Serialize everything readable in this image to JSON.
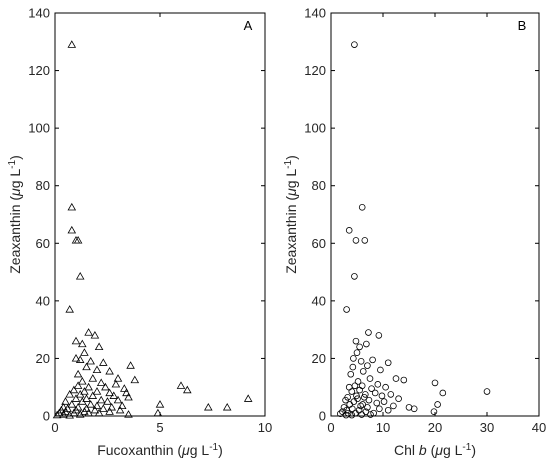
{
  "chart_data": [
    {
      "type": "scatter",
      "panel_label": "A",
      "xlabel": "Fucoxanthin (μg L⁻¹)",
      "ylabel": "Zeaxanthin (μg L⁻¹)",
      "xlim": [
        0,
        10
      ],
      "ylim": [
        0,
        140
      ],
      "xticks": [
        "0",
        "5",
        "10"
      ],
      "yticks": [
        "0",
        "20",
        "40",
        "60",
        "80",
        "100",
        "120",
        "140"
      ],
      "marker": "triangle",
      "grid": false,
      "points": [
        [
          0.8,
          129
        ],
        [
          0.8,
          72.5
        ],
        [
          0.8,
          64.5
        ],
        [
          1.0,
          61
        ],
        [
          1.1,
          61
        ],
        [
          1.2,
          48.5
        ],
        [
          0.7,
          37
        ],
        [
          1.6,
          29
        ],
        [
          1.9,
          28
        ],
        [
          1.0,
          26
        ],
        [
          1.3,
          25
        ],
        [
          2.1,
          24
        ],
        [
          1.4,
          22
        ],
        [
          1.0,
          20
        ],
        [
          1.2,
          19.5
        ],
        [
          1.7,
          19
        ],
        [
          2.3,
          18.5
        ],
        [
          3.6,
          17.5
        ],
        [
          1.5,
          17
        ],
        [
          2.0,
          16
        ],
        [
          2.6,
          15.5
        ],
        [
          1.1,
          14.5
        ],
        [
          3.0,
          13
        ],
        [
          1.8,
          13
        ],
        [
          3.8,
          12.5
        ],
        [
          1.3,
          12
        ],
        [
          2.2,
          11.5
        ],
        [
          2.9,
          11
        ],
        [
          6.0,
          10.5
        ],
        [
          1.1,
          10.5
        ],
        [
          1.6,
          10
        ],
        [
          2.4,
          10
        ],
        [
          3.3,
          9.5
        ],
        [
          6.3,
          9
        ],
        [
          0.9,
          9
        ],
        [
          1.4,
          8.5
        ],
        [
          2.0,
          8.5
        ],
        [
          2.6,
          8
        ],
        [
          3.4,
          8
        ],
        [
          0.7,
          7.5
        ],
        [
          1.2,
          7.5
        ],
        [
          1.8,
          7
        ],
        [
          2.8,
          7
        ],
        [
          3.5,
          6.5
        ],
        [
          9.2,
          6
        ],
        [
          1.0,
          6
        ],
        [
          1.5,
          6
        ],
        [
          2.2,
          5.5
        ],
        [
          3.0,
          5.5
        ],
        [
          0.5,
          5
        ],
        [
          1.3,
          5
        ],
        [
          2.5,
          5
        ],
        [
          5.0,
          4
        ],
        [
          0.8,
          4
        ],
        [
          1.7,
          4
        ],
        [
          2.0,
          3.5
        ],
        [
          3.2,
          3.5
        ],
        [
          7.3,
          3
        ],
        [
          8.2,
          3
        ],
        [
          0.4,
          3
        ],
        [
          1.1,
          3
        ],
        [
          2.7,
          3
        ],
        [
          0.6,
          2.5
        ],
        [
          1.5,
          2.5
        ],
        [
          2.3,
          2.5
        ],
        [
          0.3,
          2
        ],
        [
          1.0,
          2
        ],
        [
          1.9,
          2
        ],
        [
          3.1,
          2
        ],
        [
          0.5,
          1.5
        ],
        [
          1.4,
          1.5
        ],
        [
          2.6,
          1.5
        ],
        [
          4.9,
          1
        ],
        [
          0.2,
          1
        ],
        [
          0.9,
          1
        ],
        [
          1.6,
          1
        ],
        [
          2.1,
          1
        ],
        [
          0.4,
          0.5
        ],
        [
          1.2,
          0.5
        ],
        [
          3.5,
          0.5
        ],
        [
          0.1,
          0.3
        ],
        [
          0.7,
          0.2
        ]
      ]
    },
    {
      "type": "scatter",
      "panel_label": "B",
      "xlabel": "Chl b (μg L⁻¹)",
      "ylabel": "Zeaxanthin (μg L⁻¹)",
      "xlim": [
        0,
        40
      ],
      "ylim": [
        0,
        140
      ],
      "xticks": [
        "0",
        "10",
        "20",
        "30",
        "40"
      ],
      "yticks": [
        "0",
        "20",
        "40",
        "60",
        "80",
        "100",
        "120",
        "140"
      ],
      "marker": "circle",
      "grid": false,
      "points": [
        [
          4.5,
          129
        ],
        [
          6.0,
          72.5
        ],
        [
          3.5,
          64.5
        ],
        [
          4.8,
          61
        ],
        [
          6.5,
          61
        ],
        [
          4.5,
          48.5
        ],
        [
          3.0,
          37
        ],
        [
          7.2,
          29
        ],
        [
          9.2,
          28
        ],
        [
          4.8,
          26
        ],
        [
          6.8,
          25
        ],
        [
          5.5,
          24
        ],
        [
          5.0,
          22
        ],
        [
          4.3,
          20
        ],
        [
          8.0,
          19.5
        ],
        [
          5.8,
          19
        ],
        [
          11.0,
          18.5
        ],
        [
          7.0,
          17.5
        ],
        [
          4.2,
          17
        ],
        [
          9.5,
          16
        ],
        [
          6.2,
          15.5
        ],
        [
          3.8,
          14.5
        ],
        [
          12.5,
          13
        ],
        [
          7.5,
          13
        ],
        [
          14.0,
          12.5
        ],
        [
          5.2,
          12
        ],
        [
          20.0,
          11.5
        ],
        [
          9.0,
          11
        ],
        [
          4.6,
          10.5
        ],
        [
          6.0,
          10.5
        ],
        [
          10.5,
          10
        ],
        [
          3.5,
          10
        ],
        [
          7.8,
          9.5
        ],
        [
          5.5,
          9
        ],
        [
          30.0,
          8.5
        ],
        [
          21.5,
          8
        ],
        [
          4.0,
          8.5
        ],
        [
          8.5,
          8
        ],
        [
          6.6,
          7.5
        ],
        [
          11.5,
          7.5
        ],
        [
          4.9,
          7
        ],
        [
          9.8,
          7
        ],
        [
          3.2,
          6.5
        ],
        [
          6.4,
          6.5
        ],
        [
          13.0,
          6
        ],
        [
          5.1,
          6
        ],
        [
          7.3,
          5.5
        ],
        [
          2.8,
          5.5
        ],
        [
          10.2,
          5
        ],
        [
          4.4,
          5
        ],
        [
          8.8,
          4.5
        ],
        [
          6.1,
          4
        ],
        [
          3.6,
          4
        ],
        [
          20.5,
          4
        ],
        [
          5.7,
          3.5
        ],
        [
          12.0,
          3.5
        ],
        [
          2.5,
          3
        ],
        [
          7.0,
          3
        ],
        [
          15.0,
          3
        ],
        [
          16.0,
          2.5
        ],
        [
          4.1,
          2.5
        ],
        [
          9.3,
          2.5
        ],
        [
          5.4,
          2
        ],
        [
          3.0,
          2
        ],
        [
          11.0,
          2
        ],
        [
          19.8,
          1.5
        ],
        [
          6.7,
          1.5
        ],
        [
          2.2,
          1.5
        ],
        [
          4.7,
          1
        ],
        [
          8.2,
          1
        ],
        [
          3.3,
          1
        ],
        [
          1.8,
          0.8
        ],
        [
          5.9,
          0.5
        ],
        [
          2.9,
          0.3
        ],
        [
          4.0,
          0.3
        ],
        [
          7.6,
          0.5
        ]
      ]
    }
  ]
}
